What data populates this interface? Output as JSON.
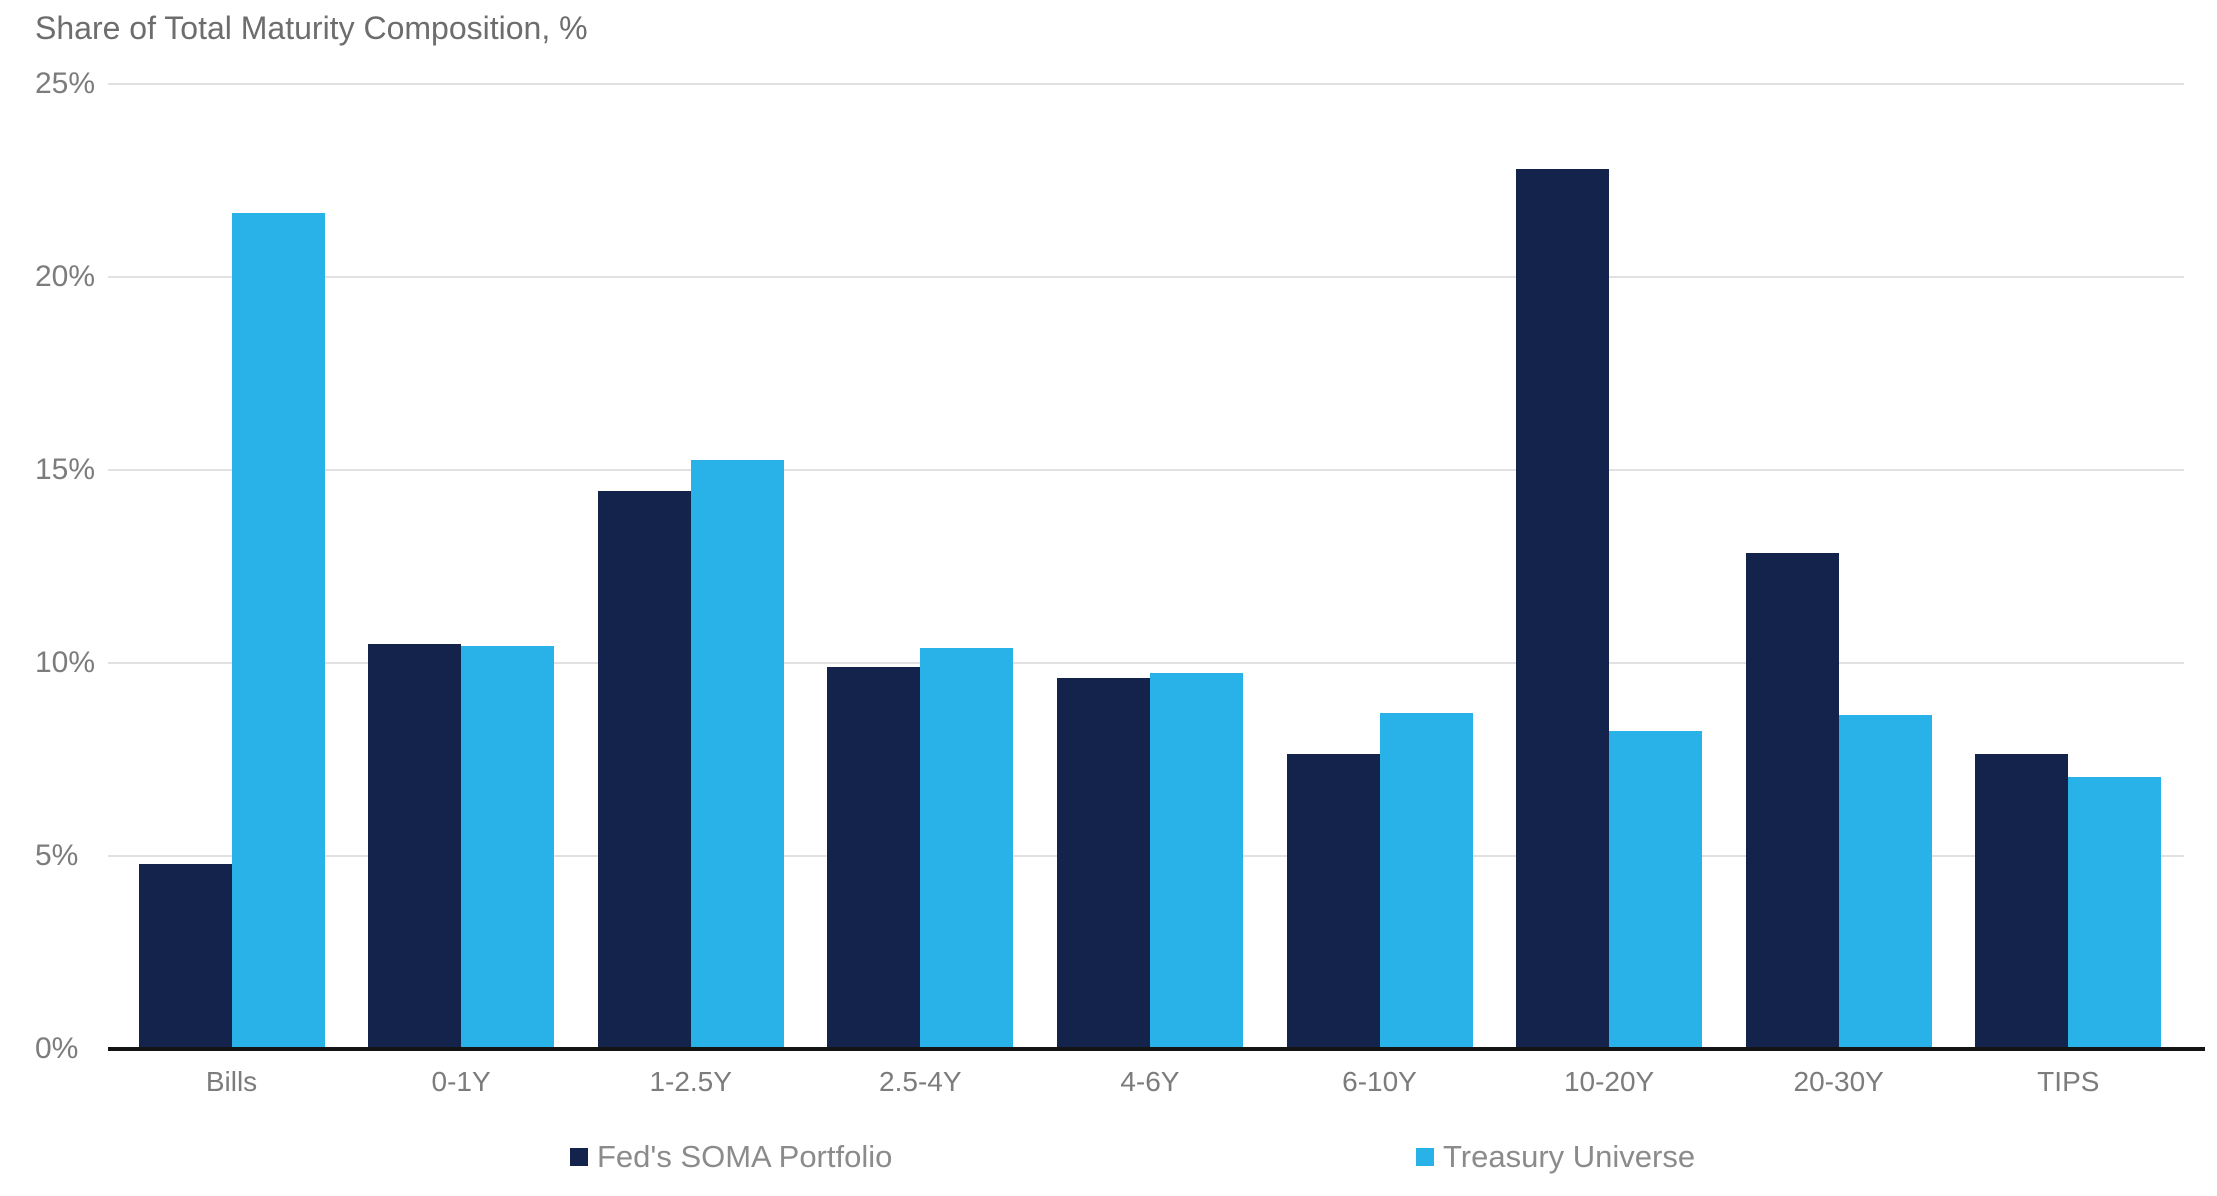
{
  "title": "Share of Total Maturity Composition, %",
  "colors": {
    "soma": "#13234B",
    "treasury": "#29B2E8",
    "gridline": "#E1E1E3",
    "axis_line": "#141414",
    "label_text": "#7C7C7C"
  },
  "y_axis": {
    "tick_labels": [
      "25%",
      "20%",
      "15%",
      "10%",
      "5%",
      "0%"
    ]
  },
  "legend": [
    {
      "label": "Fed's SOMA Portfolio",
      "color": "#13234B"
    },
    {
      "label": "Treasury Universe",
      "color": "#29B2E8"
    }
  ],
  "chart_data": {
    "type": "bar",
    "title": "Share of Total Maturity Composition, %",
    "categories": [
      "Bills",
      "0-1Y",
      "1-2.5Y",
      "2.5-4Y",
      "4-6Y",
      "6-10Y",
      "10-20Y",
      "20-30Y",
      "TIPS"
    ],
    "series": [
      {
        "name": "Fed's SOMA Portfolio",
        "color": "#13234B",
        "values": [
          4.8,
          10.5,
          14.45,
          9.9,
          9.6,
          7.65,
          22.8,
          12.85,
          7.65
        ]
      },
      {
        "name": "Treasury Universe",
        "color": "#29B2E8",
        "values": [
          21.65,
          10.45,
          15.25,
          10.4,
          9.75,
          8.7,
          8.25,
          8.65,
          7.05
        ]
      }
    ],
    "xlabel": "",
    "ylabel": "Share of Total Maturity Composition, %",
    "ylim": [
      0,
      25
    ],
    "y_tick_step": 5,
    "y_tick_format": "percent",
    "grid": true,
    "legend_position": "bottom"
  }
}
